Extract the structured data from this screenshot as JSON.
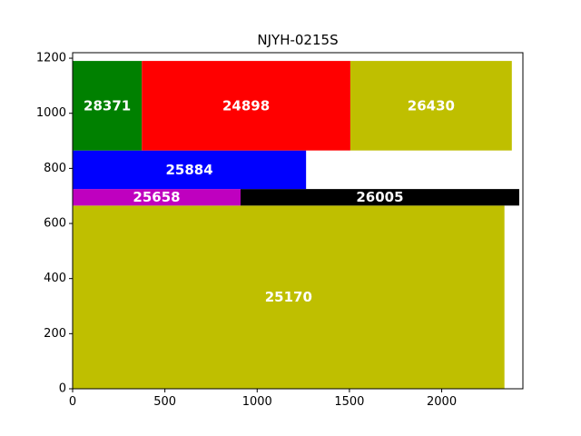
{
  "chart_data": {
    "type": "bar",
    "title": "NJYH-0215S",
    "xlabel": "",
    "ylabel": "",
    "xlim": [
      0,
      2440
    ],
    "ylim": [
      0,
      1220
    ],
    "xticks": [
      0,
      500,
      1000,
      1500,
      2000
    ],
    "yticks": [
      0,
      200,
      400,
      600,
      800,
      1000,
      1200
    ],
    "grid": false,
    "rects": [
      {
        "label": "25170",
        "x": 0,
        "y": 0,
        "w": 2340,
        "h": 665,
        "color": "#bfbf00"
      },
      {
        "label": "25658",
        "x": 0,
        "y": 665,
        "w": 910,
        "h": 60,
        "color": "#bf00bf"
      },
      {
        "label": "26005",
        "x": 910,
        "y": 665,
        "w": 1510,
        "h": 60,
        "color": "#000000"
      },
      {
        "label": "25884",
        "x": 0,
        "y": 725,
        "w": 1265,
        "h": 140,
        "color": "#0000ff"
      },
      {
        "label": "28371",
        "x": 0,
        "y": 865,
        "w": 375,
        "h": 325,
        "color": "#008000"
      },
      {
        "label": "24898",
        "x": 375,
        "y": 865,
        "w": 1130,
        "h": 325,
        "color": "#ff0000"
      },
      {
        "label": "26430",
        "x": 1505,
        "y": 865,
        "w": 875,
        "h": 325,
        "color": "#bfbf00"
      }
    ]
  }
}
